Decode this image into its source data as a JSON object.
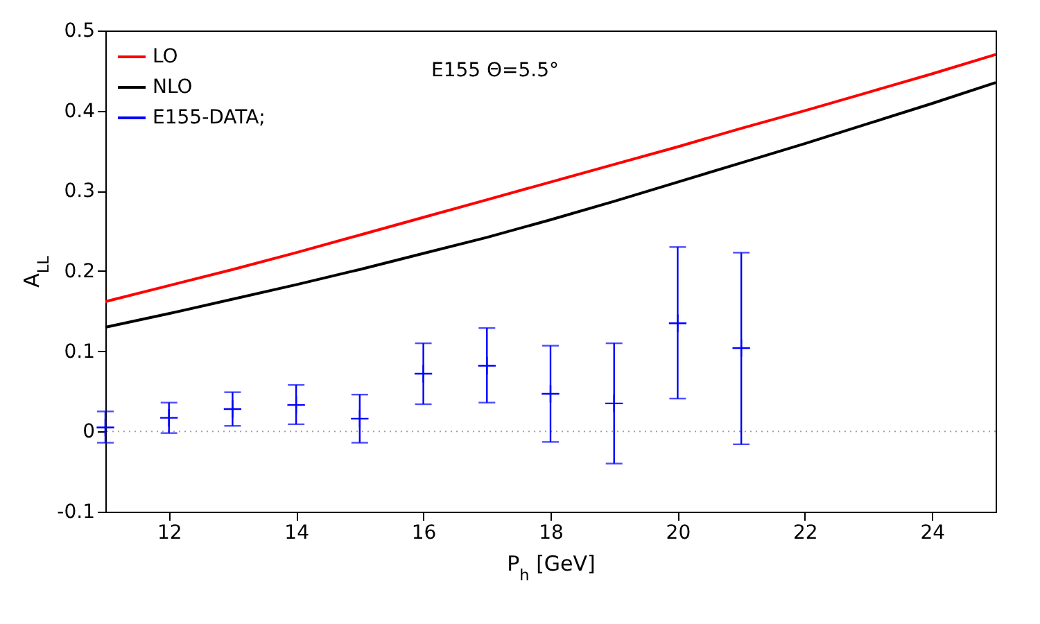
{
  "chart_data": {
    "type": "line",
    "xlabel": "P$_{h}$ [GeV]",
    "ylabel": "A$_{LL}$",
    "annotations": [
      "E155 Θ=5.5°"
    ],
    "xlim": [
      11,
      25
    ],
    "xticks": [
      12,
      14,
      16,
      18,
      20,
      22,
      24
    ],
    "ylim": [
      -0.1,
      0.5
    ],
    "yticks": [
      -0.1,
      0,
      0.1,
      0.2,
      0.3,
      0.4,
      0.5
    ],
    "grid": false,
    "legend": "top left",
    "line_style": "solid",
    "ref_lines": [
      {
        "axis": "y",
        "value": 0,
        "color": "#a0a0a0",
        "line_style": "dotted"
      }
    ],
    "series": [
      {
        "name": "LO",
        "color": "#ff0000",
        "x": [
          11,
          12,
          13,
          14,
          15,
          16,
          17,
          18,
          19,
          20,
          21,
          22,
          23,
          24,
          25
        ],
        "values": [
          0.162,
          0.182,
          0.202,
          0.223,
          0.245,
          0.267,
          0.289,
          0.311,
          0.333,
          0.355,
          0.378,
          0.4,
          0.423,
          0.446,
          0.47
        ]
      },
      {
        "name": "NLO",
        "color": "#000000",
        "x": [
          11,
          12,
          13,
          14,
          15,
          16,
          17,
          18,
          19,
          20,
          21,
          22,
          23,
          24,
          25
        ],
        "values": [
          0.13,
          0.147,
          0.165,
          0.183,
          0.202,
          0.222,
          0.242,
          0.264,
          0.287,
          0.311,
          0.335,
          0.359,
          0.384,
          0.409,
          0.435
        ]
      },
      {
        "name": "E155-DATA;",
        "color": "#0000ff",
        "type": "scatter",
        "marker": "cross",
        "x": [
          11,
          12,
          13,
          14,
          15,
          16,
          17,
          18,
          19,
          20,
          21
        ],
        "values": [
          0.005,
          0.017,
          0.028,
          0.033,
          0.016,
          0.072,
          0.082,
          0.047,
          0.035,
          0.135,
          0.104
        ],
        "errors": [
          [
            -0.014,
            0.025
          ],
          [
            -0.002,
            0.036
          ],
          [
            0.007,
            0.049
          ],
          [
            0.009,
            0.058
          ],
          [
            -0.014,
            0.046
          ],
          [
            0.034,
            0.11
          ],
          [
            0.036,
            0.129
          ],
          [
            -0.013,
            0.107
          ],
          [
            -0.04,
            0.11
          ],
          [
            0.041,
            0.23
          ],
          [
            -0.016,
            0.223
          ]
        ]
      }
    ]
  }
}
